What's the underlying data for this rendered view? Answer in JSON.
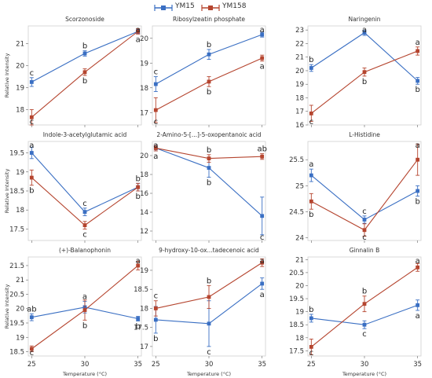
{
  "legend": [
    {
      "name": "YM15",
      "color": "#3a6fc3"
    },
    {
      "name": "YM158",
      "color": "#b5452f"
    }
  ],
  "shared": {
    "x_ticks": [
      25,
      30,
      35
    ],
    "xlabel": "Temperature (°C)",
    "ylabel": "Relative Intensity"
  },
  "chart_data": [
    {
      "type": "line",
      "title": "Scorzonoside",
      "x": [
        25,
        30,
        35
      ],
      "ylim": [
        17.3,
        21.8
      ],
      "yticks": [
        18,
        19,
        20,
        21
      ],
      "series": [
        {
          "name": "YM15",
          "values": [
            19.25,
            20.55,
            21.55
          ],
          "err": [
            0.2,
            0.12,
            0.1
          ],
          "labels": [
            "c",
            "b",
            "a"
          ]
        },
        {
          "name": "YM158",
          "values": [
            17.65,
            19.7,
            21.55
          ],
          "err": [
            0.35,
            0.15,
            0.12
          ],
          "labels": [
            "c",
            "b",
            "a"
          ]
        }
      ]
    },
    {
      "type": "line",
      "title": "Ribosylzeatin phosphate",
      "x": [
        25,
        30,
        35
      ],
      "ylim": [
        16.5,
        20.5
      ],
      "yticks": [
        17,
        18,
        19,
        20
      ],
      "series": [
        {
          "name": "YM15",
          "values": [
            18.15,
            19.35,
            20.15
          ],
          "err": [
            0.3,
            0.2,
            0.1
          ],
          "labels": [
            "c",
            "b",
            "a"
          ]
        },
        {
          "name": "YM158",
          "values": [
            17.1,
            18.25,
            19.2
          ],
          "err": [
            0.5,
            0.2,
            0.12
          ],
          "labels": [
            "c",
            "b",
            "a"
          ]
        }
      ]
    },
    {
      "type": "line",
      "title": "Naringenin",
      "x": [
        25,
        30,
        35
      ],
      "ylim": [
        16,
        23.3
      ],
      "yticks": [
        16,
        17,
        18,
        19,
        20,
        21,
        22,
        23
      ],
      "series": [
        {
          "name": "YM15",
          "values": [
            20.2,
            22.8,
            19.25
          ],
          "err": [
            0.25,
            0.2,
            0.25
          ],
          "labels": [
            "b",
            "a",
            "b"
          ]
        },
        {
          "name": "YM158",
          "values": [
            16.85,
            19.9,
            21.45
          ],
          "err": [
            0.6,
            0.3,
            0.3
          ],
          "labels": [
            "c",
            "b",
            "a"
          ]
        }
      ]
    },
    {
      "type": "line",
      "title": "Indole-3-acetylglutamic acid",
      "x": [
        25,
        30,
        35
      ],
      "ylim": [
        17.2,
        19.8
      ],
      "yticks": [
        17.5,
        18.0,
        18.5,
        19.0,
        19.5
      ],
      "series": [
        {
          "name": "YM15",
          "values": [
            19.5,
            17.95,
            18.6
          ],
          "err": [
            0.15,
            0.1,
            0.1
          ],
          "labels": [
            "a",
            "c",
            "b"
          ]
        },
        {
          "name": "YM158",
          "values": [
            18.85,
            17.6,
            18.6
          ],
          "err": [
            0.2,
            0.1,
            0.1
          ],
          "labels": [
            "b",
            "c",
            "b"
          ]
        }
      ]
    },
    {
      "type": "line",
      "title": "2-Amino-5-[...]-5-oxopentanoic acid",
      "x": [
        25,
        30,
        35
      ],
      "ylim": [
        11,
        21.5
      ],
      "yticks": [
        12,
        14,
        16,
        18,
        20
      ],
      "series": [
        {
          "name": "YM15",
          "values": [
            20.8,
            18.7,
            13.6
          ],
          "err": [
            0.3,
            1.0,
            2.0
          ],
          "labels": [
            "a",
            "b",
            "c"
          ]
        },
        {
          "name": "YM158",
          "values": [
            20.8,
            19.7,
            19.9
          ],
          "err": [
            0.3,
            0.4,
            0.3
          ],
          "labels": [
            "a",
            "b",
            "ab"
          ]
        }
      ]
    },
    {
      "type": "line",
      "title": "L-Histidine",
      "x": [
        25,
        30,
        35
      ],
      "ylim": [
        23.95,
        25.85
      ],
      "yticks": [
        24.0,
        24.5,
        25.0,
        25.5
      ],
      "series": [
        {
          "name": "YM15",
          "values": [
            25.2,
            24.35,
            24.9
          ],
          "err": [
            0.12,
            0.07,
            0.1
          ],
          "labels": [
            "a",
            "c",
            "b"
          ]
        },
        {
          "name": "YM158",
          "values": [
            24.7,
            24.15,
            25.5
          ],
          "err": [
            0.15,
            0.12,
            0.3
          ],
          "labels": [
            "b",
            "c",
            "a"
          ]
        }
      ]
    },
    {
      "type": "line",
      "title": "(+)-Balanophonin",
      "x": [
        25,
        30,
        35
      ],
      "ylim": [
        18.35,
        21.8
      ],
      "yticks": [
        18.5,
        19.0,
        19.5,
        20.0,
        20.5,
        21.0,
        21.5
      ],
      "series": [
        {
          "name": "YM15",
          "values": [
            19.7,
            20.05,
            19.65
          ],
          "err": [
            0.12,
            0.2,
            0.08
          ],
          "labels": [
            "ab",
            "a",
            "b"
          ]
        },
        {
          "name": "YM158",
          "values": [
            18.6,
            19.95,
            21.5
          ],
          "err": [
            0.1,
            0.35,
            0.15
          ],
          "labels": [
            "c",
            "b",
            "a"
          ]
        }
      ]
    },
    {
      "type": "line",
      "title": "9-hydroxy-10-ox...tadecenoic acid",
      "x": [
        25,
        30,
        35
      ],
      "ylim": [
        16.75,
        19.35
      ],
      "yticks": [
        17.0,
        17.5,
        18.0,
        18.5,
        19.0
      ],
      "series": [
        {
          "name": "YM15",
          "values": [
            17.7,
            17.6,
            18.65
          ],
          "err": [
            0.35,
            0.6,
            0.15
          ],
          "labels": [
            "b",
            "c",
            "a"
          ]
        },
        {
          "name": "YM158",
          "values": [
            18.0,
            18.3,
            19.2
          ],
          "err": [
            0.2,
            0.3,
            0.1
          ],
          "labels": [
            "c",
            "b",
            "a"
          ]
        }
      ]
    },
    {
      "type": "line",
      "title": "Ginnalin B",
      "x": [
        25,
        30,
        35
      ],
      "ylim": [
        17.3,
        21.1
      ],
      "yticks": [
        17.5,
        18.0,
        18.5,
        19.0,
        19.5,
        20.0,
        20.5,
        21.0
      ],
      "series": [
        {
          "name": "YM15",
          "values": [
            18.75,
            18.5,
            19.25
          ],
          "err": [
            0.15,
            0.15,
            0.2
          ],
          "labels": [
            "b",
            "c",
            "a"
          ]
        },
        {
          "name": "YM158",
          "values": [
            17.65,
            19.3,
            20.7
          ],
          "err": [
            0.3,
            0.3,
            0.15
          ],
          "labels": [
            "c",
            "b",
            "a"
          ]
        }
      ]
    }
  ]
}
